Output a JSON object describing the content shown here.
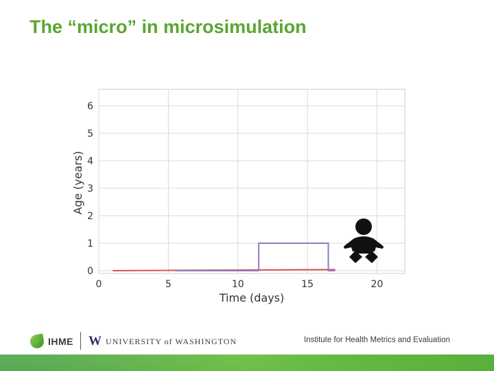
{
  "slide": {
    "title": "The “micro” in microsimulation"
  },
  "chart_data": {
    "type": "line",
    "xlabel": "Time (days)",
    "ylabel": "Age (years)",
    "xlim": [
      0,
      22
    ],
    "ylim": [
      -0.1,
      6.6
    ],
    "x_ticks": [
      0,
      5,
      10,
      15,
      20
    ],
    "y_ticks": [
      0,
      1,
      2,
      3,
      4,
      5,
      6
    ],
    "grid": true,
    "series": [
      {
        "color": "#d9534f",
        "points": [
          [
            1,
            0
          ],
          [
            17,
            0.04
          ]
        ]
      },
      {
        "color": "#8e7cc3",
        "points": [
          [
            5.5,
            0
          ],
          [
            11.5,
            0
          ],
          [
            11.5,
            1
          ],
          [
            16.5,
            1
          ],
          [
            16.5,
            0
          ],
          [
            17,
            0
          ]
        ]
      }
    ],
    "annotations": [
      {
        "icon": "baby-icon",
        "near": "right of data"
      }
    ]
  },
  "footer": {
    "ihme_logo_text": "IHME",
    "uw_logo_letter": "W",
    "uw_logo_text": "UNIVERSITY of WASHINGTON",
    "institute_text": "Institute for Health Metrics and Evaluation"
  },
  "colors": {
    "title": "#5aa631",
    "grid": "#d9d9d9",
    "band": "#5aaf3c"
  }
}
